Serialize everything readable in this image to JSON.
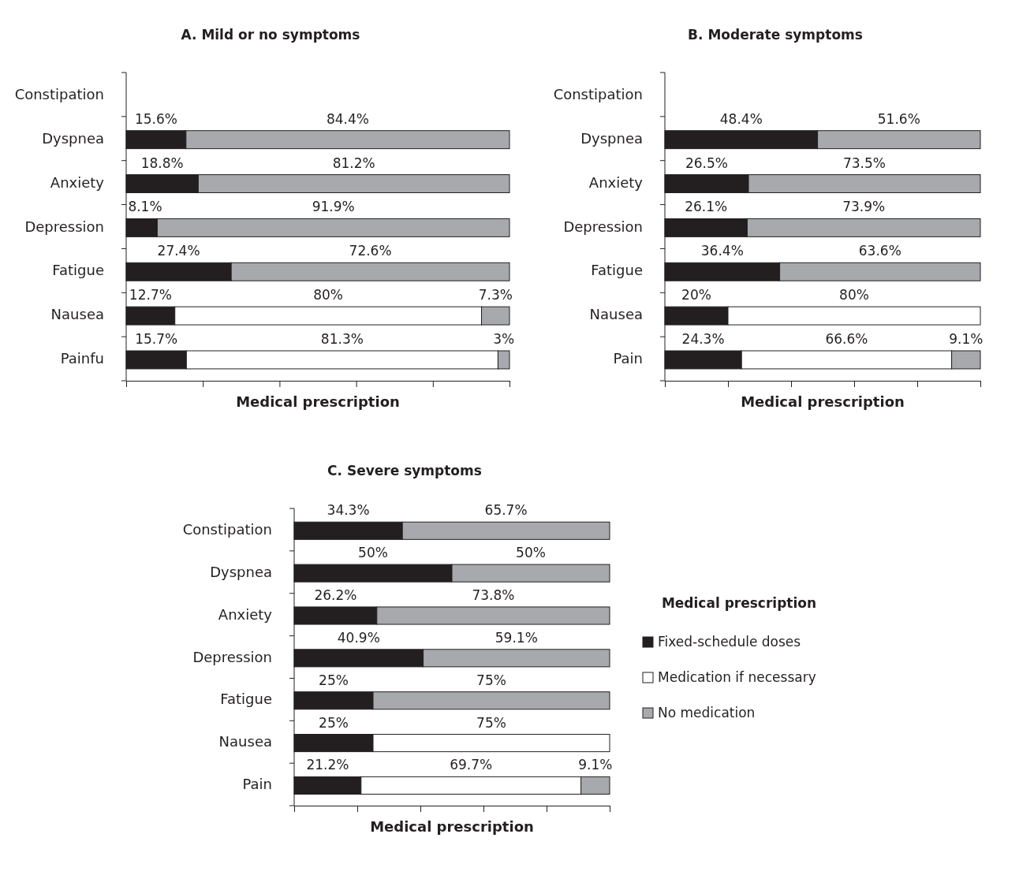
{
  "chart_data": [
    {
      "type": "bar",
      "orientation": "horizontal",
      "stacked": true,
      "title": "A. Mild or no symptoms",
      "xlabel": "Medical prescription",
      "categories": [
        "Constipation",
        "Dyspnea",
        "Anxiety",
        "Depression",
        "Fatigue",
        "Nausea",
        "Painfu"
      ],
      "xlim": [
        0,
        100
      ],
      "xticks": [
        {
          "value": 0,
          "label": null
        },
        {
          "value": 20,
          "label": null
        },
        {
          "value": 40,
          "label": null
        },
        {
          "value": 60,
          "label": null
        },
        {
          "value": 80,
          "label": null
        },
        {
          "value": 100,
          "label": null
        }
      ],
      "tick_labels": "y",
      "series": [
        {
          "color": "#231f20",
          "values": [
            null,
            15.6,
            18.8,
            8.1,
            27.4,
            12.7,
            15.7
          ],
          "value_labels": [
            null,
            "15.6%",
            "18.8%",
            "8.1%",
            "27.4%",
            "12.7%",
            "15.7%"
          ]
        },
        {
          "color": "#ffffff",
          "values": [
            null,
            null,
            null,
            null,
            null,
            80,
            81.3
          ],
          "value_labels": [
            null,
            null,
            null,
            null,
            null,
            "80%",
            "81.3%"
          ]
        },
        {
          "color": "#a7a9ac",
          "values": [
            null,
            84.4,
            81.2,
            91.9,
            72.6,
            7.3,
            3
          ],
          "value_labels": [
            null,
            "84.4%",
            "81.2%",
            "91.9%",
            "72.6%",
            "7.3%",
            "3%"
          ]
        }
      ]
    },
    {
      "type": "bar",
      "orientation": "horizontal",
      "stacked": true,
      "title": "B. Moderate symptoms",
      "xlabel": "Medical prescription",
      "categories": [
        "Constipation",
        "Dyspnea",
        "Anxiety",
        "Depression",
        "Fatigue",
        "Nausea",
        "Pain"
      ],
      "xlim": [
        0,
        100
      ],
      "xticks": [
        {
          "value": 0,
          "label": null
        },
        {
          "value": 20,
          "label": null
        },
        {
          "value": 40,
          "label": null
        },
        {
          "value": 60,
          "label": null
        },
        {
          "value": 80,
          "label": null
        },
        {
          "value": 100,
          "label": null
        }
      ],
      "tick_labels": "y",
      "series": [
        {
          "color": "#231f20",
          "values": [
            null,
            48.4,
            26.5,
            26.1,
            36.4,
            20,
            24.3
          ],
          "value_labels": [
            null,
            "48.4%",
            "26.5%",
            "26.1%",
            "36.4%",
            "20%",
            "24.3%"
          ]
        },
        {
          "color": "#ffffff",
          "values": [
            null,
            null,
            null,
            null,
            null,
            80,
            66.6
          ],
          "value_labels": [
            null,
            null,
            null,
            null,
            null,
            "80%",
            "66.6%"
          ]
        },
        {
          "color": "#a7a9ac",
          "values": [
            null,
            51.6,
            73.5,
            73.9,
            63.6,
            null,
            9.1
          ],
          "value_labels": [
            null,
            "51.6%",
            "73.5%",
            "73.9%",
            "63.6%",
            null,
            "9.1%"
          ]
        }
      ]
    },
    {
      "type": "bar",
      "orientation": "horizontal",
      "stacked": true,
      "title": "C. Severe symptoms",
      "xlabel": "Medical prescription",
      "legend": "right",
      "legend_title": "Medical prescription",
      "categories": [
        "Constipation",
        "Dyspnea",
        "Anxiety",
        "Depression",
        "Fatigue",
        "Nausea",
        "Pain"
      ],
      "xlim": [
        0,
        100
      ],
      "xticks": [
        {
          "value": 0,
          "label": null
        },
        {
          "value": 20,
          "label": null
        },
        {
          "value": 40,
          "label": null
        },
        {
          "value": 60,
          "label": null
        },
        {
          "value": 80,
          "label": null
        },
        {
          "value": 100,
          "label": null
        }
      ],
      "tick_labels": "y",
      "series": [
        {
          "name": "Fixed-schedule doses",
          "color": "#231f20",
          "values": [
            34.3,
            50,
            26.2,
            40.9,
            25,
            25,
            21.2
          ],
          "value_labels": [
            "34.3%",
            "50%",
            "26.2%",
            "40.9%",
            "25%",
            "25%",
            "21.2%"
          ]
        },
        {
          "name": "Medication if necessary",
          "color": "#ffffff",
          "values": [
            null,
            null,
            null,
            null,
            null,
            75,
            69.7
          ],
          "value_labels": [
            null,
            null,
            null,
            null,
            null,
            "75%",
            "69.7%"
          ]
        },
        {
          "name": "No medication",
          "color": "#a7a9ac",
          "values": [
            65.7,
            50,
            73.8,
            59.1,
            75,
            null,
            9.1
          ],
          "value_labels": [
            "65.7%",
            "50%",
            "73.8%",
            "59.1%",
            "75%",
            null,
            "9.1%"
          ]
        }
      ]
    }
  ]
}
